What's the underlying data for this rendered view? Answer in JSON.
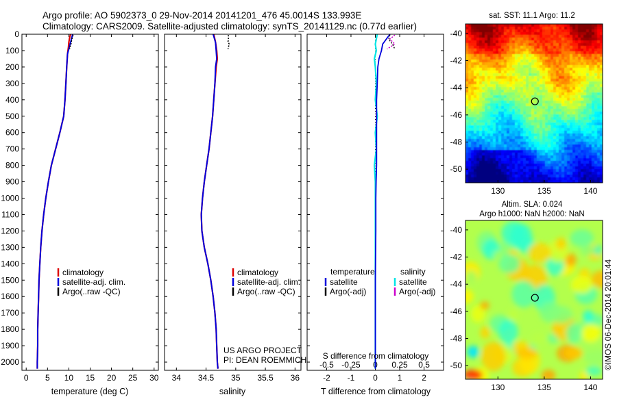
{
  "header": {
    "line1": "Argo profile: AO 5902373_0 29-Nov-2014 20141201_476 45.0014S 133.993E",
    "line2": "Climatology: CARS2009. Satellite-adjusted climatology: synTS_20141129.nc (0.77d earlier)"
  },
  "footer": {
    "project": "US ARGO PROJECT",
    "pi": "PI: DEAN ROEMMICH",
    "stamp": "©IMOS 06-Dec-2014 20:01:44"
  },
  "chart_data": [
    {
      "type": "line",
      "id": "temperature",
      "xlabel": "temperature (deg C)",
      "ylabel": "",
      "xlim": [
        -1,
        31
      ],
      "ylim": [
        0,
        2050
      ],
      "y_inverted": true,
      "x_ticks": [
        "0",
        "5",
        "10",
        "15",
        "20",
        "25",
        "30"
      ],
      "y_ticks": [
        "0",
        "100",
        "200",
        "300",
        "400",
        "500",
        "600",
        "700",
        "800",
        "900",
        "1000",
        "1100",
        "1200",
        "1300",
        "1400",
        "1500",
        "1600",
        "1700",
        "1800",
        "1900",
        "2000"
      ],
      "legend": [
        "climatology",
        "satellite-adj. clim.",
        "Argo(..raw -QC)"
      ],
      "series": [
        {
          "name": "climatology",
          "color": "#dd0000",
          "depth": [
            0,
            20,
            50,
            80,
            120,
            200,
            300,
            400,
            500,
            600,
            700,
            800,
            900,
            1000,
            1100,
            1200,
            1300,
            1400,
            1500,
            1600,
            1700,
            1800,
            1900,
            2000,
            2040
          ],
          "values": [
            10.4,
            10.2,
            10.0,
            9.9,
            9.7,
            9.5,
            9.3,
            9.1,
            8.8,
            7.9,
            6.9,
            5.9,
            5.2,
            4.6,
            4.1,
            3.7,
            3.4,
            3.2,
            3.0,
            2.9,
            2.8,
            2.7,
            2.7,
            2.6,
            2.6
          ]
        },
        {
          "name": "satellite-adj. clim.",
          "color": "#0000dd",
          "depth": [
            0,
            20,
            50,
            80,
            120,
            200,
            300,
            400,
            500,
            600,
            700,
            800,
            900,
            1000,
            1100,
            1200,
            1300,
            1400,
            1500,
            1600,
            1700,
            1800,
            1900,
            2000,
            2040
          ],
          "values": [
            10.9,
            10.7,
            10.4,
            10.1,
            9.7,
            9.5,
            9.3,
            9.1,
            8.8,
            7.9,
            6.9,
            5.9,
            5.2,
            4.6,
            4.1,
            3.7,
            3.4,
            3.2,
            3.0,
            2.9,
            2.8,
            2.7,
            2.7,
            2.6,
            2.6
          ]
        },
        {
          "name": "Argo(..raw -QC)",
          "color": "#000000",
          "depth": [
            5,
            15,
            30,
            45,
            60,
            75,
            90
          ],
          "values": [
            11.0,
            10.9,
            10.7,
            10.6,
            10.5,
            10.3,
            10.2
          ]
        }
      ]
    },
    {
      "type": "line",
      "id": "salinity",
      "xlabel": "salinity",
      "xlim": [
        33.8,
        36.1
      ],
      "ylim": [
        0,
        2050
      ],
      "y_inverted": true,
      "x_ticks": [
        "34",
        "34.5",
        "35",
        "35.5",
        "36"
      ],
      "legend": [
        "climatology",
        "satellite-adj. clim.",
        "Argo(..raw -QC)"
      ],
      "series": [
        {
          "name": "climatology",
          "color": "#dd0000",
          "depth": [
            0,
            50,
            100,
            150,
            200,
            300,
            400,
            500,
            600,
            700,
            800,
            900,
            1000,
            1100,
            1200,
            1300,
            1400,
            1500,
            1600,
            1700,
            1800,
            1900,
            2000,
            2040
          ],
          "values": [
            34.63,
            34.66,
            34.68,
            34.69,
            34.67,
            34.65,
            34.63,
            34.61,
            34.58,
            34.55,
            34.51,
            34.47,
            34.44,
            34.42,
            34.43,
            34.47,
            34.53,
            34.58,
            34.62,
            34.65,
            34.67,
            34.68,
            34.69,
            34.7
          ]
        },
        {
          "name": "satellite-adj. clim.",
          "color": "#0000dd",
          "depth": [
            0,
            50,
            100,
            150,
            200,
            300,
            400,
            500,
            600,
            700,
            800,
            900,
            1000,
            1100,
            1200,
            1300,
            1400,
            1500,
            1600,
            1700,
            1800,
            1900,
            2000,
            2040
          ],
          "values": [
            34.62,
            34.66,
            34.67,
            34.68,
            34.66,
            34.65,
            34.63,
            34.61,
            34.58,
            34.55,
            34.51,
            34.47,
            34.44,
            34.42,
            34.43,
            34.47,
            34.53,
            34.58,
            34.62,
            34.65,
            34.67,
            34.68,
            34.69,
            34.7
          ]
        },
        {
          "name": "Argo(..raw -QC)",
          "color": "#000000",
          "depth": [
            5,
            15,
            30,
            45,
            60,
            75,
            90
          ],
          "values": [
            34.88,
            34.87,
            34.88,
            34.87,
            34.89,
            34.88,
            34.87
          ]
        }
      ]
    },
    {
      "type": "line",
      "id": "difference",
      "xlabel": "T difference from climatology",
      "top_label": "S difference from climatology",
      "xlim": [
        -2.8,
        2.8
      ],
      "s_xlim": [
        -0.7,
        0.7
      ],
      "ylim": [
        0,
        2050
      ],
      "y_inverted": true,
      "x_ticks": [
        "-2",
        "-1",
        "0",
        "1",
        "2"
      ],
      "s_ticks": [
        "-0.5",
        "-0.25",
        "0",
        "0.25",
        "0.5"
      ],
      "legend_left": {
        "title": "temperature",
        "items": [
          "satellite",
          "Argo(-adj)"
        ]
      },
      "legend_right": {
        "title": "salinity",
        "items": [
          "satellite",
          "Argo(-adj)"
        ]
      },
      "series": [
        {
          "name": "temperature satellite",
          "color": "#0000dd",
          "depth": [
            0,
            30,
            60,
            100,
            150,
            200,
            300,
            400,
            500,
            600,
            700,
            800,
            900,
            1000,
            1200,
            1500,
            2000,
            2040
          ],
          "values": [
            0.6,
            0.45,
            0.3,
            0.25,
            0.15,
            0.1,
            0.08,
            0.05,
            0.05,
            0.05,
            0.05,
            0.05,
            0.03,
            0.02,
            0.02,
            0.0,
            0.0,
            0.0
          ]
        },
        {
          "name": "temperature Argo(-adj)",
          "color": "#000000",
          "depth": [
            5,
            30,
            60,
            90
          ],
          "values": [
            0.6,
            0.55,
            0.7,
            0.8
          ]
        },
        {
          "name": "salinity satellite",
          "color": "#00e5e5",
          "depth": [
            0,
            30,
            60,
            100,
            150,
            200,
            300,
            400,
            500,
            600,
            700,
            800,
            900,
            1000,
            1200,
            1500,
            2000,
            2040
          ],
          "values": [
            0.02,
            0.01,
            0.0,
            0.01,
            -0.01,
            0.0,
            0.01,
            0.0,
            0.02,
            0.0,
            0.01,
            -0.01,
            0.0,
            0.0,
            0.0,
            0.0,
            0.0,
            0.0
          ]
        },
        {
          "name": "salinity Argo(-adj)",
          "color": "#cc00cc",
          "depth": [
            5,
            30,
            60,
            90
          ],
          "values": [
            0.2,
            0.15,
            0.2,
            0.12
          ]
        }
      ]
    },
    {
      "type": "heatmap",
      "id": "sst_map",
      "title": "sat. SST: 11.1  Argo: 11.2",
      "x_ticks": [
        "130",
        "135",
        "140"
      ],
      "y_ticks": [
        "-40",
        "-42",
        "-44",
        "-46",
        "-48",
        "-50"
      ],
      "xlim": [
        126.5,
        141.3
      ],
      "ylim": [
        -51,
        -39.3
      ],
      "marker": {
        "lon": 133.993,
        "lat": -45.0014
      }
    },
    {
      "type": "heatmap",
      "id": "sla_map",
      "title": "Altim. SLA: 0.024",
      "subtitle": "Argo h1000: NaN h2000: NaN",
      "x_ticks": [
        "130",
        "135",
        "140"
      ],
      "y_ticks": [
        "-40",
        "-42",
        "-44",
        "-46",
        "-48",
        "-50"
      ],
      "xlim": [
        126.5,
        141.3
      ],
      "ylim": [
        -51,
        -39.3
      ],
      "marker": {
        "lon": 133.993,
        "lat": -45.0014
      }
    }
  ]
}
